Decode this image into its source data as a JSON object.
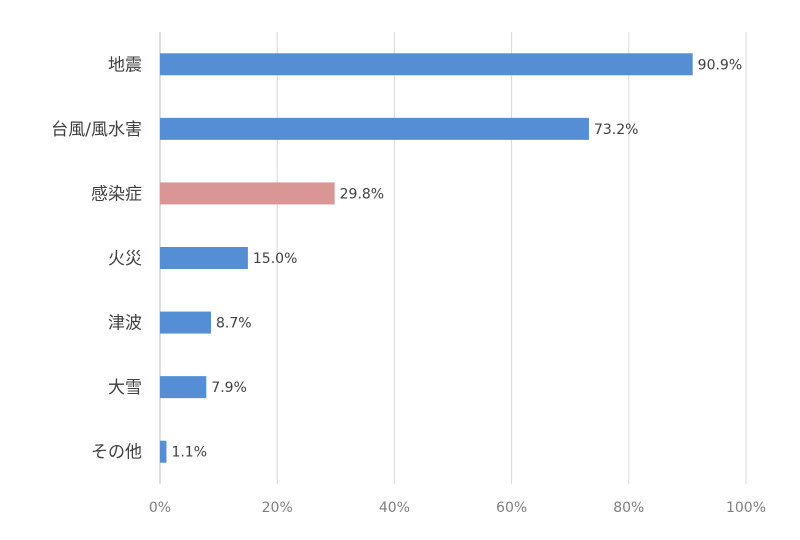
{
  "chart_data": {
    "type": "bar",
    "orientation": "horizontal",
    "categories": [
      "地震",
      "台風/風水害",
      "感染症",
      "火災",
      "津波",
      "大雪",
      "その他"
    ],
    "values": [
      90.9,
      73.2,
      29.8,
      15.0,
      8.7,
      7.9,
      1.1
    ],
    "value_labels": [
      "90.9%",
      "73.2%",
      "29.8%",
      "15.0%",
      "8.7%",
      "7.9%",
      "1.1%"
    ],
    "xlim": [
      0,
      100
    ],
    "xticks": [
      0,
      20,
      40,
      60,
      80,
      100
    ],
    "xtick_labels": [
      "0%",
      "20%",
      "40%",
      "60%",
      "80%",
      "100%"
    ],
    "grid": true,
    "colors": {
      "default": "#558ed5",
      "highlight": "#d99694",
      "highlight_category": "感染症"
    }
  }
}
